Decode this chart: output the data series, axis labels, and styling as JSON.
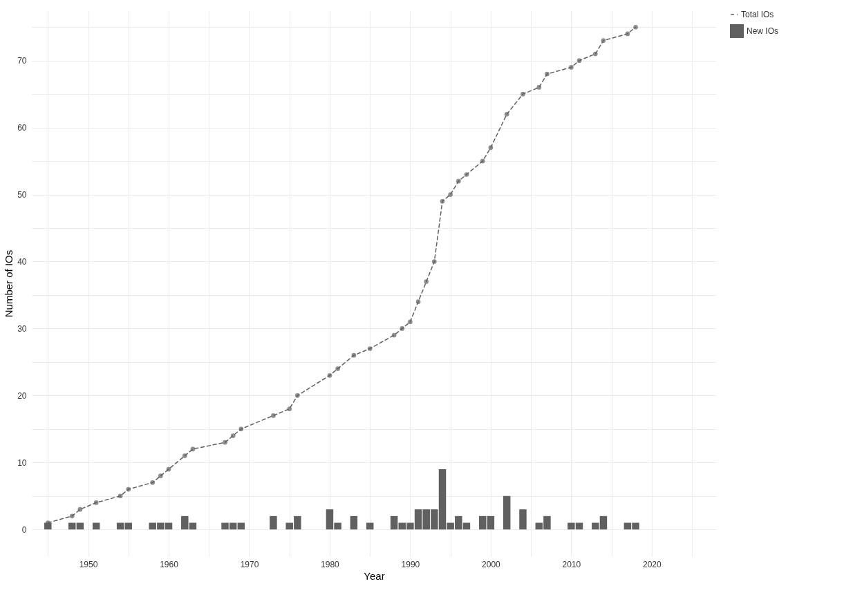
{
  "chart_data": {
    "type": "bar",
    "xlabel": "Year",
    "ylabel": "Number of IOs",
    "xlim": [
      1943,
      2028
    ],
    "ylim": [
      -4,
      77.5
    ],
    "xticks": [
      {
        "value": 1945,
        "label": null
      },
      1950,
      {
        "value": 1955,
        "label": null
      },
      1960,
      {
        "value": 1965,
        "label": null
      },
      1970,
      {
        "value": 1975,
        "label": null
      },
      1980,
      {
        "value": 1985,
        "label": null
      },
      1990,
      {
        "value": 1995,
        "label": null
      },
      2000,
      {
        "value": 2005,
        "label": null
      },
      2010,
      {
        "value": 2015,
        "label": null
      },
      2020,
      {
        "value": 2025,
        "label": null
      }
    ],
    "yticks": [
      0,
      {
        "value": 5,
        "label": null
      },
      10,
      {
        "value": 15,
        "label": null
      },
      20,
      {
        "value": 25,
        "label": null
      },
      30,
      {
        "value": 35,
        "label": null
      },
      40,
      {
        "value": 45,
        "label": null
      },
      50,
      {
        "value": 55,
        "label": null
      },
      60,
      {
        "value": 65,
        "label": null
      },
      70,
      {
        "value": 75,
        "label": null
      }
    ],
    "grid": true,
    "legend": "right",
    "series": [
      {
        "name": "Total IOs",
        "type": "line",
        "marker": "circle",
        "line_style": "dashed",
        "color": "#606060",
        "x": [
          1945,
          1948,
          1949,
          1951,
          1954,
          1955,
          1958,
          1959,
          1960,
          1962,
          1963,
          1967,
          1968,
          1969,
          1973,
          1975,
          1976,
          1980,
          1981,
          1983,
          1985,
          1988,
          1989,
          1990,
          1991,
          1992,
          1993,
          1994,
          1995,
          1996,
          1997,
          1999,
          2000,
          2002,
          2004,
          2006,
          2007,
          2010,
          2011,
          2013,
          2014,
          2017,
          2018
        ],
        "values": [
          1,
          2,
          3,
          4,
          5,
          6,
          7,
          8,
          9,
          11,
          12,
          13,
          14,
          15,
          17,
          18,
          20,
          23,
          24,
          26,
          27,
          29,
          30,
          31,
          34,
          37,
          40,
          49,
          50,
          52,
          53,
          55,
          57,
          62,
          65,
          66,
          68,
          69,
          70,
          71,
          73,
          74,
          75
        ]
      },
      {
        "name": "New IOs",
        "color": "#606060",
        "x": [
          1945,
          1948,
          1949,
          1951,
          1954,
          1955,
          1958,
          1959,
          1960,
          1962,
          1963,
          1967,
          1968,
          1969,
          1973,
          1975,
          1976,
          1980,
          1981,
          1983,
          1985,
          1988,
          1989,
          1990,
          1991,
          1992,
          1993,
          1994,
          1995,
          1996,
          1997,
          1999,
          2000,
          2002,
          2004,
          2006,
          2007,
          2010,
          2011,
          2013,
          2014,
          2017,
          2018
        ],
        "values": [
          1,
          1,
          1,
          1,
          1,
          1,
          1,
          1,
          1,
          2,
          1,
          1,
          1,
          1,
          2,
          1,
          2,
          3,
          1,
          2,
          1,
          2,
          1,
          1,
          3,
          3,
          3,
          9,
          1,
          2,
          1,
          2,
          2,
          5,
          3,
          1,
          2,
          1,
          1,
          1,
          2,
          1,
          1
        ]
      }
    ]
  }
}
